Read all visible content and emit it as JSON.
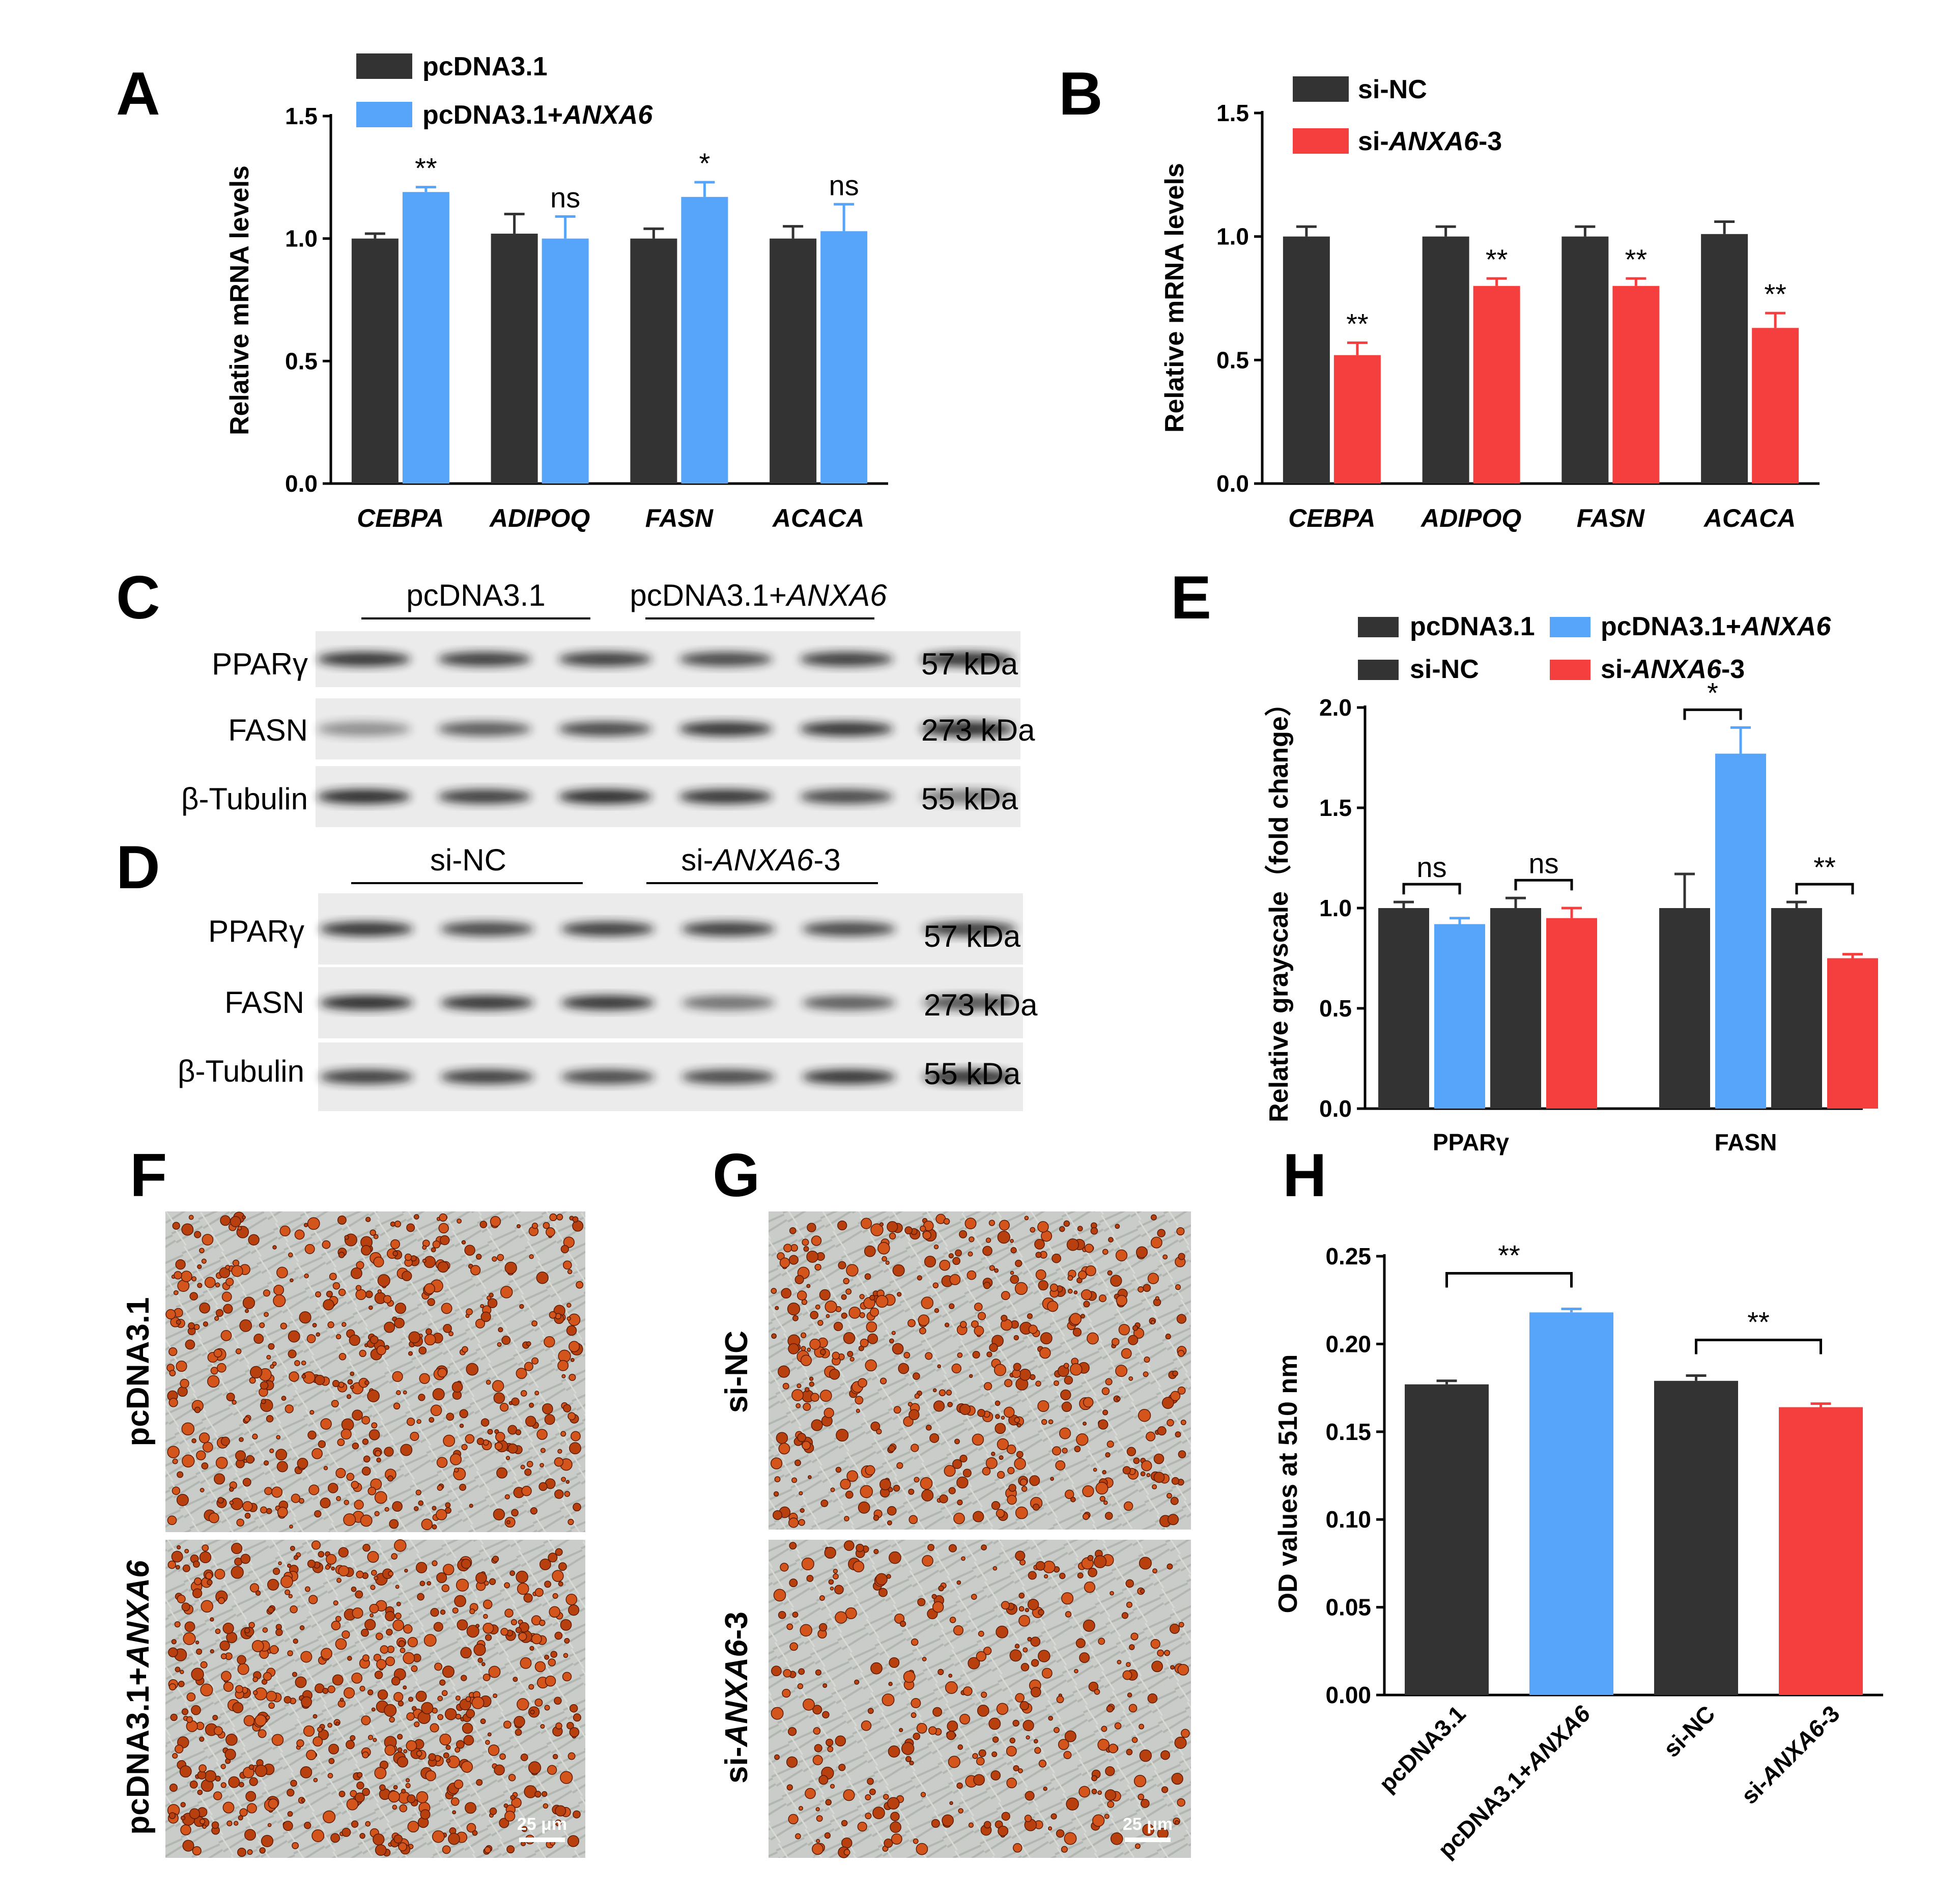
{
  "colors": {
    "dark": "#333333",
    "blue": "#56a5fa",
    "red": "#f53f3f"
  },
  "panel_labels": {
    "A": "A",
    "B": "B",
    "C": "C",
    "D": "D",
    "E": "E",
    "F": "F",
    "G": "G",
    "H": "H"
  },
  "chart_data": [
    {
      "id": "A",
      "type": "bar",
      "title": "",
      "ylabel": "Relative mRNA levels",
      "xlabel": "",
      "ylim": [
        0,
        1.5
      ],
      "yticks": [
        "0.0",
        "0.5",
        "1.0",
        "1.5"
      ],
      "categories": [
        "CEBPA",
        "ADIPOQ",
        "FASN",
        "ACACA"
      ],
      "series": [
        {
          "name": "pcDNA3.1",
          "color": "#333333",
          "values": [
            1.0,
            1.02,
            1.0,
            1.0
          ],
          "errors": [
            0.02,
            0.08,
            0.04,
            0.05
          ]
        },
        {
          "name": "pcDNA3.1+ANXA6",
          "color": "#56a5fa",
          "values": [
            1.19,
            1.0,
            1.17,
            1.03
          ],
          "errors": [
            0.02,
            0.09,
            0.06,
            0.11
          ]
        }
      ],
      "significance": [
        "**",
        "ns",
        "*",
        "ns"
      ],
      "legend": [
        {
          "prefix": "pcDNA3.1",
          "italic": "",
          "suffix": ""
        },
        {
          "prefix": "pcDNA3.1+",
          "italic": "ANXA6",
          "suffix": ""
        }
      ]
    },
    {
      "id": "B",
      "type": "bar",
      "title": "",
      "ylabel": "Relative mRNA levels",
      "xlabel": "",
      "ylim": [
        0,
        1.5
      ],
      "yticks": [
        "0.0",
        "0.5",
        "1.0",
        "1.5"
      ],
      "categories": [
        "CEBPA",
        "ADIPOQ",
        "FASN",
        "ACACA"
      ],
      "series": [
        {
          "name": "si-NC",
          "color": "#333333",
          "values": [
            1.0,
            1.0,
            1.0,
            1.01
          ],
          "errors": [
            0.04,
            0.04,
            0.04,
            0.05
          ]
        },
        {
          "name": "si-ANXA6-3",
          "color": "#f53f3f",
          "values": [
            0.52,
            0.8,
            0.8,
            0.63
          ],
          "errors": [
            0.05,
            0.03,
            0.03,
            0.06
          ]
        }
      ],
      "significance": [
        "**",
        "**",
        "**",
        "**"
      ],
      "legend": [
        {
          "prefix": "si-NC",
          "italic": "",
          "suffix": ""
        },
        {
          "prefix": "si-",
          "italic": "ANXA6",
          "suffix": "-3"
        }
      ]
    },
    {
      "id": "E",
      "type": "bar",
      "title": "",
      "ylabel": "Relative grayscale（fold change）",
      "xlabel": "",
      "ylim": [
        0,
        2.0
      ],
      "yticks": [
        "0.0",
        "0.5",
        "1.0",
        "1.5",
        "2.0"
      ],
      "categories": [
        "PPARγ",
        "FASN"
      ],
      "bars": [
        {
          "group": 0,
          "name": "pcDNA3.1",
          "color": "#333333",
          "value": 1.0,
          "error": 0.03
        },
        {
          "group": 0,
          "name": "pcDNA3.1+ANXA6",
          "color": "#56a5fa",
          "value": 0.92,
          "error": 0.03
        },
        {
          "group": 0,
          "name": "si-NC",
          "color": "#333333",
          "value": 1.0,
          "error": 0.05
        },
        {
          "group": 0,
          "name": "si-ANXA6-3",
          "color": "#f53f3f",
          "value": 0.95,
          "error": 0.05
        },
        {
          "group": 1,
          "name": "pcDNA3.1",
          "color": "#333333",
          "value": 1.0,
          "error": 0.17
        },
        {
          "group": 1,
          "name": "pcDNA3.1+ANXA6",
          "color": "#56a5fa",
          "value": 1.77,
          "error": 0.13
        },
        {
          "group": 1,
          "name": "si-NC",
          "color": "#333333",
          "value": 1.0,
          "error": 0.03
        },
        {
          "group": 1,
          "name": "si-ANXA6-3",
          "color": "#f53f3f",
          "value": 0.75,
          "error": 0.02
        }
      ],
      "brackets": [
        {
          "from": 0,
          "to": 1,
          "label": "ns"
        },
        {
          "from": 2,
          "to": 3,
          "label": "ns"
        },
        {
          "from": 4,
          "to": 5,
          "label": "*"
        },
        {
          "from": 6,
          "to": 7,
          "label": "**"
        }
      ],
      "legend": [
        {
          "prefix": "pcDNA3.1",
          "italic": "",
          "suffix": "",
          "color": "#333333"
        },
        {
          "prefix": "pcDNA3.1+",
          "italic": "ANXA6",
          "suffix": "",
          "color": "#56a5fa"
        },
        {
          "prefix": "si-NC",
          "italic": "",
          "suffix": "",
          "color": "#333333"
        },
        {
          "prefix": "si-",
          "italic": "ANXA6",
          "suffix": "-3",
          "color": "#f53f3f"
        }
      ]
    },
    {
      "id": "H",
      "type": "bar",
      "title": "",
      "ylabel": "OD values at 510 nm",
      "xlabel": "",
      "ylim": [
        0,
        0.25
      ],
      "yticks": [
        "0.00",
        "0.05",
        "0.10",
        "0.15",
        "0.20",
        "0.25"
      ],
      "categories": [
        "pcDNA3.1",
        "pcDNA3.1+ANXA6",
        "si-NC",
        "si-ANXA6-3"
      ],
      "catlabels": [
        {
          "prefix": "pcDNA3.1",
          "italic": "",
          "suffix": ""
        },
        {
          "prefix": "pcDNA3.1+",
          "italic": "ANXA6",
          "suffix": ""
        },
        {
          "prefix": "si-NC",
          "italic": "",
          "suffix": ""
        },
        {
          "prefix": "si-",
          "italic": "ANXA6",
          "suffix": "-3"
        }
      ],
      "colors": [
        "#333333",
        "#56a5fa",
        "#333333",
        "#f53f3f"
      ],
      "values": [
        0.177,
        0.218,
        0.179,
        0.164
      ],
      "errors": [
        0.002,
        0.002,
        0.003,
        0.002
      ],
      "brackets": [
        {
          "from": 0,
          "to": 1,
          "label": "**"
        },
        {
          "from": 2,
          "to": 3,
          "label": "**"
        }
      ]
    }
  ],
  "western": {
    "C": {
      "groups": [
        {
          "prefix": "pcDNA3.1",
          "italic": "",
          "suffix": ""
        },
        {
          "prefix": "pcDNA3.1+",
          "italic": "ANXA6",
          "suffix": ""
        }
      ],
      "rows": [
        {
          "protein": "PPARγ",
          "size": "57 kDa"
        },
        {
          "protein": "FASN",
          "size": "273 kDa"
        },
        {
          "protein": "β-Tubulin",
          "size": "55 kDa"
        }
      ]
    },
    "D": {
      "groups": [
        {
          "prefix": "si-NC",
          "italic": "",
          "suffix": ""
        },
        {
          "prefix": "si-",
          "italic": "ANXA6",
          "suffix": "-3"
        }
      ],
      "rows": [
        {
          "protein": "PPARγ",
          "size": "57 kDa"
        },
        {
          "protein": "FASN",
          "size": "273 kDa"
        },
        {
          "protein": "β-Tubulin",
          "size": "55 kDa"
        }
      ]
    }
  },
  "micrographs": {
    "F": {
      "labels": [
        {
          "prefix": "pcDNA3.1",
          "italic": "",
          "suffix": ""
        },
        {
          "prefix": "pcDNA3.1+",
          "italic": "ANXA6",
          "suffix": ""
        }
      ],
      "scalebar": "25 μm"
    },
    "G": {
      "labels": [
        {
          "prefix": "si-NC",
          "italic": "",
          "suffix": ""
        },
        {
          "prefix": "si-",
          "italic": "ANXA6",
          "suffix": "-3"
        }
      ],
      "scalebar": "25 μm"
    }
  }
}
